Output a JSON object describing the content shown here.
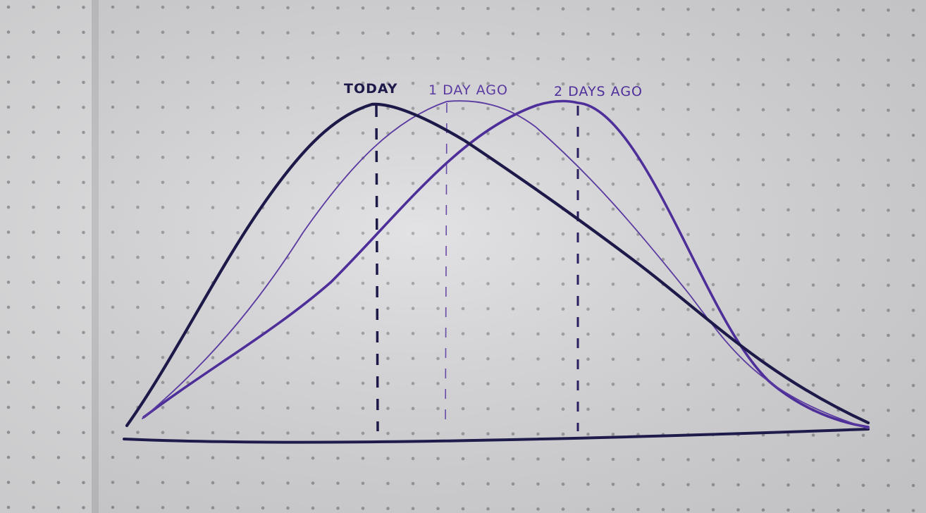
{
  "colors": {
    "paper": "#dcdcdf",
    "paper_left": "#e4e4e6",
    "dots": "#9a9ba0",
    "ink_dark": "#1d1a4a",
    "ink_purple": "#55329a",
    "ink_purple_light": "#6a4aa8"
  },
  "chart_data": {
    "type": "line",
    "title": "",
    "xlabel": "",
    "ylabel": "",
    "grid": false,
    "legend": "none",
    "x_range": [
      0,
      100
    ],
    "y_range": [
      0,
      100
    ],
    "series": [
      {
        "name": "TODAY",
        "color": "#1d1a4a",
        "stroke": "thick",
        "peak_x": 33,
        "points": [
          [
            0,
            3
          ],
          [
            9,
            50
          ],
          [
            20,
            85
          ],
          [
            33,
            100
          ],
          [
            41,
            96
          ],
          [
            52,
            80
          ],
          [
            66,
            52
          ],
          [
            84,
            17
          ],
          [
            100,
            3
          ]
        ]
      },
      {
        "name": "1 DAY AGO",
        "color": "#5a3aa0",
        "stroke": "thin",
        "peak_x": 43,
        "points": [
          [
            2,
            3
          ],
          [
            15,
            37
          ],
          [
            29,
            74
          ],
          [
            43,
            100
          ],
          [
            52,
            94
          ],
          [
            61,
            76
          ],
          [
            73,
            48
          ],
          [
            86,
            17
          ],
          [
            100,
            4
          ]
        ]
      },
      {
        "name": "2 DAYS AGO",
        "color": "#4e2f9a",
        "stroke": "medium",
        "peak_x": 61,
        "points": [
          [
            2,
            3
          ],
          [
            15,
            22
          ],
          [
            32,
            62
          ],
          [
            48,
            92
          ],
          [
            61,
            100
          ],
          [
            70,
            85
          ],
          [
            79,
            60
          ],
          [
            86,
            25
          ],
          [
            100,
            2
          ]
        ]
      }
    ],
    "annotations": [
      "TODAY",
      "1 DAY AGO",
      "2 DAYS AGO"
    ]
  }
}
